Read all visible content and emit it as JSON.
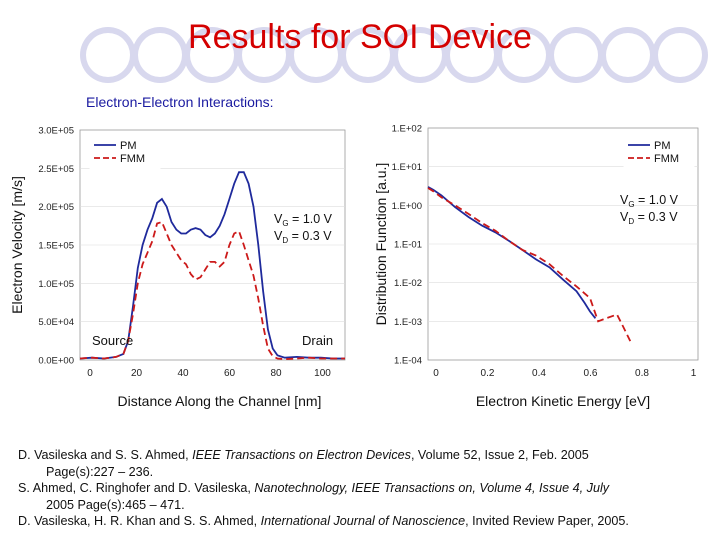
{
  "slide": {
    "title": "Results for SOI Device",
    "subtitle": "Electron-Electron Interactions:"
  },
  "colors": {
    "title": "#d40000",
    "pm": "#1f2a9c",
    "fmm": "#cc1a1a",
    "circle": "#d8d8ee"
  },
  "chart_data": [
    {
      "type": "line",
      "xlabel": "Distance Along the Channel [nm]",
      "ylabel": "Electron Velocity [m/s]",
      "xlim": [
        0,
        110
      ],
      "ylim": [
        0,
        300000
      ],
      "x_ticks": [
        "0",
        "20",
        "40",
        "60",
        "80",
        "100"
      ],
      "y_ticks": [
        "0.0E+00",
        "5.0E+04",
        "1.0E+05",
        "1.5E+05",
        "2.0E+05",
        "2.5E+05",
        "3.0E+05"
      ],
      "legend": [
        "PM",
        "FMM"
      ],
      "legend_position": "top-left",
      "annotations": {
        "vg": "V",
        "vg_sub": "G",
        "vg_val": " = 1.0 V",
        "vd": "V",
        "vd_sub": "D",
        "vd_val": " = 0.3 V",
        "source": "Source",
        "drain": "Drain"
      },
      "series": [
        {
          "name": "PM",
          "x": [
            0,
            5,
            10,
            15,
            18,
            20,
            22,
            24,
            26,
            28,
            30,
            32,
            34,
            36,
            38,
            40,
            42,
            44,
            46,
            48,
            50,
            52,
            54,
            56,
            58,
            60,
            62,
            64,
            66,
            68,
            70,
            72,
            74,
            76,
            78,
            80,
            82,
            85,
            90,
            95,
            100,
            105,
            110
          ],
          "y": [
            2000,
            3000,
            2000,
            4000,
            8000,
            25000,
            70000,
            120000,
            150000,
            170000,
            185000,
            205000,
            210000,
            200000,
            180000,
            170000,
            165000,
            165000,
            170000,
            172000,
            170000,
            163000,
            160000,
            165000,
            175000,
            190000,
            210000,
            230000,
            245000,
            245000,
            230000,
            200000,
            150000,
            90000,
            40000,
            15000,
            6000,
            3000,
            4000,
            3000,
            3000,
            2000,
            2000
          ]
        },
        {
          "name": "FMM",
          "x": [
            0,
            5,
            10,
            15,
            18,
            20,
            22,
            24,
            26,
            28,
            30,
            32,
            34,
            36,
            38,
            40,
            42,
            44,
            46,
            48,
            50,
            52,
            54,
            56,
            58,
            60,
            62,
            64,
            66,
            68,
            70,
            72,
            74,
            76,
            78,
            80,
            82,
            85,
            90,
            95,
            100,
            105,
            110
          ],
          "y": [
            2000,
            3000,
            2000,
            4000,
            8000,
            25000,
            60000,
            100000,
            125000,
            140000,
            155000,
            178000,
            180000,
            165000,
            150000,
            140000,
            130000,
            125000,
            112000,
            105000,
            108000,
            118000,
            128000,
            128000,
            122000,
            128000,
            150000,
            165000,
            168000,
            150000,
            130000,
            110000,
            80000,
            45000,
            15000,
            5000,
            2000,
            1000,
            2000,
            3000,
            2000,
            2000,
            2000
          ]
        }
      ]
    },
    {
      "type": "line",
      "xlabel": "Electron Kinetic Energy [eV]",
      "ylabel": "Distribution Function [a.u.]",
      "xlim": [
        0,
        1
      ],
      "ylim": [
        0.0001,
        100
      ],
      "yscale": "log",
      "x_ticks": [
        "0",
        "0.2",
        "0.4",
        "0.6",
        "0.8",
        "1"
      ],
      "y_ticks": [
        "1.E-04",
        "1.E-03",
        "1.E-02",
        "1.E-01",
        "1.E+00",
        "1.E+01",
        "1.E+02"
      ],
      "legend": [
        "PM",
        "FMM"
      ],
      "legend_position": "top-right",
      "annotations": {
        "vg": "V",
        "vg_sub": "G",
        "vg_val": " = 1.0 V",
        "vd": "V",
        "vd_sub": "D",
        "vd_val": " = 0.3 V"
      },
      "series": [
        {
          "name": "PM",
          "x": [
            0.0,
            0.02,
            0.05,
            0.1,
            0.15,
            0.2,
            0.25,
            0.3,
            0.35,
            0.4,
            0.45,
            0.5,
            0.55,
            0.58,
            0.6,
            0.62
          ],
          "y": [
            3.0,
            2.5,
            1.8,
            0.9,
            0.5,
            0.3,
            0.2,
            0.12,
            0.07,
            0.04,
            0.025,
            0.012,
            0.006,
            0.003,
            0.0018,
            0.0012
          ]
        },
        {
          "name": "FMM",
          "x": [
            0.0,
            0.02,
            0.05,
            0.1,
            0.15,
            0.2,
            0.25,
            0.3,
            0.35,
            0.4,
            0.45,
            0.5,
            0.55,
            0.6,
            0.63,
            0.66,
            0.7,
            0.72,
            0.75
          ],
          "y": [
            2.8,
            2.3,
            1.6,
            1.0,
            0.6,
            0.35,
            0.22,
            0.12,
            0.07,
            0.05,
            0.03,
            0.015,
            0.008,
            0.004,
            0.001,
            0.0012,
            0.0015,
            0.0008,
            0.0003
          ]
        }
      ]
    }
  ],
  "references": [
    {
      "pre": "D. Vasileska and S. S. Ahmed, ",
      "journal": "IEEE Transactions on Electron Devices",
      "post": ", Volume 52,  Issue 2,  Feb. 2005",
      "cont": "Page(s):227 – 236."
    },
    {
      "pre": "S. Ahmed, C. Ringhofer and D. Vasileska, ",
      "journal": "Nanotechnology, IEEE Transactions on, Volume 4,  Issue 4,  July",
      "post": "",
      "cont": "2005 Page(s):465 – 471."
    },
    {
      "pre": "D. Vasileska, H. R. Khan and S. S. Ahmed, ",
      "journal": "International Journal of Nanoscience",
      "post": ", Invited Review Paper, 2005.",
      "cont": ""
    }
  ]
}
